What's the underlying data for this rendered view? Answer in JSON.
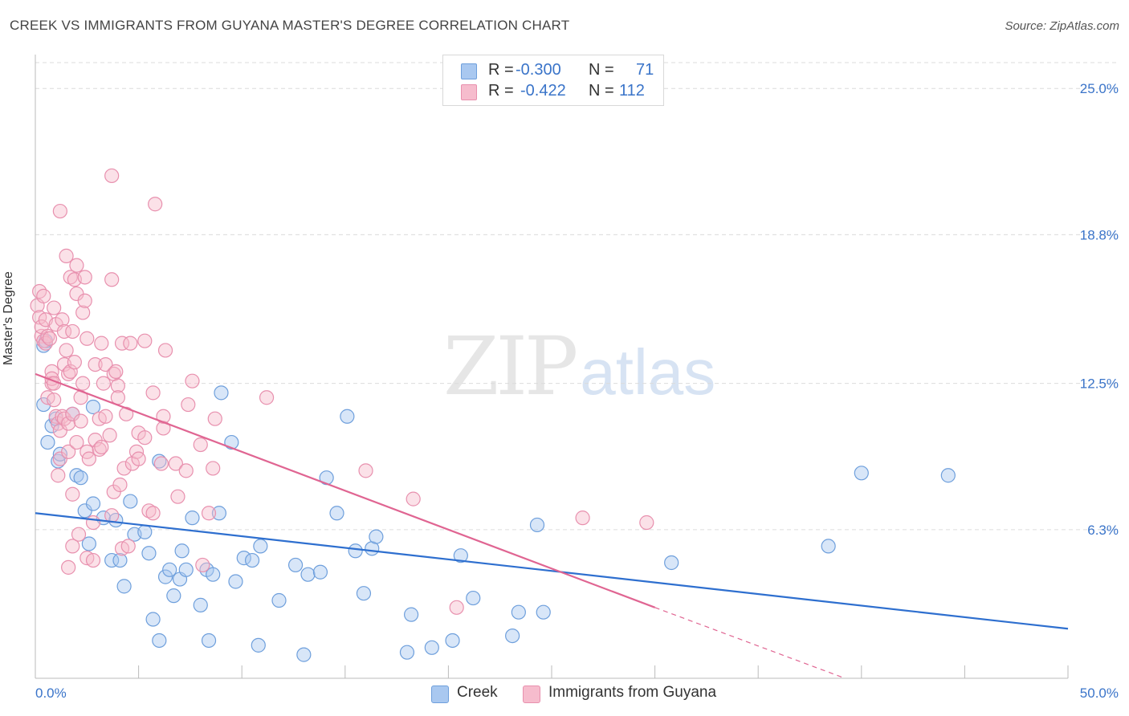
{
  "title": "CREEK VS IMMIGRANTS FROM GUYANA MASTER'S DEGREE CORRELATION CHART",
  "source": "Source: ZipAtlas.com",
  "watermark": {
    "zip": "ZIP",
    "atlas": "atlas"
  },
  "legend_stats": [
    {
      "r_label": "R =",
      "r_value": "-0.300",
      "n_label": "N =",
      "n_value": "71",
      "color": "#a9c8f0",
      "border": "#6e9fdc"
    },
    {
      "r_label": "R =",
      "r_value": "-0.422",
      "n_label": "N =",
      "n_value": "112",
      "color": "#f6bccd",
      "border": "#e890ae"
    }
  ],
  "bottom_legend": [
    {
      "label": "Creek",
      "color": "#a9c8f0",
      "border": "#6e9fdc"
    },
    {
      "label": "Immigrants from Guyana",
      "color": "#f6bccd",
      "border": "#e890ae"
    }
  ],
  "chart_data": {
    "type": "scatter",
    "xlabel": "",
    "ylabel": "Master's Degree",
    "xlim": [
      0,
      50
    ],
    "ylim": [
      0,
      26.3
    ],
    "x_tick_labels": [
      "0.0%",
      "50.0%"
    ],
    "y_ticks": [
      6.3,
      12.5,
      18.8,
      25.0
    ],
    "y_tick_labels": [
      "6.3%",
      "12.5%",
      "18.8%",
      "25.0%"
    ],
    "grid": true,
    "series": [
      {
        "name": "Creek",
        "color": "#6e9fdc",
        "fill": "#a9c8f0",
        "line_color": "#2e6fcf",
        "trend": {
          "x0": 0,
          "y0": 7.0,
          "x1": 50,
          "y1": 2.1
        },
        "points": [
          [
            0.4,
            14.1
          ],
          [
            0.5,
            14.3
          ],
          [
            0.4,
            11.6
          ],
          [
            0.6,
            10.0
          ],
          [
            0.8,
            10.7
          ],
          [
            1.0,
            11.0
          ],
          [
            1.1,
            9.2
          ],
          [
            1.2,
            9.5
          ],
          [
            1.8,
            11.2
          ],
          [
            2.0,
            8.6
          ],
          [
            2.2,
            8.5
          ],
          [
            2.4,
            7.1
          ],
          [
            2.6,
            5.7
          ],
          [
            2.8,
            7.4
          ],
          [
            2.8,
            11.5
          ],
          [
            3.3,
            6.8
          ],
          [
            3.7,
            5.0
          ],
          [
            3.9,
            6.7
          ],
          [
            4.1,
            5.0
          ],
          [
            4.3,
            3.9
          ],
          [
            4.6,
            7.5
          ],
          [
            4.8,
            6.1
          ],
          [
            5.3,
            6.2
          ],
          [
            5.5,
            5.3
          ],
          [
            5.7,
            2.5
          ],
          [
            6.0,
            1.6
          ],
          [
            6.0,
            9.2
          ],
          [
            6.3,
            4.3
          ],
          [
            6.5,
            4.6
          ],
          [
            6.7,
            3.5
          ],
          [
            7.0,
            4.2
          ],
          [
            7.1,
            5.4
          ],
          [
            7.3,
            4.6
          ],
          [
            7.6,
            6.8
          ],
          [
            8.0,
            3.1
          ],
          [
            8.3,
            4.6
          ],
          [
            8.4,
            1.6
          ],
          [
            8.6,
            4.4
          ],
          [
            8.9,
            7.0
          ],
          [
            9.0,
            12.1
          ],
          [
            9.5,
            10.0
          ],
          [
            9.7,
            4.1
          ],
          [
            10.1,
            5.1
          ],
          [
            10.5,
            5.0
          ],
          [
            10.8,
            1.4
          ],
          [
            10.9,
            5.6
          ],
          [
            11.8,
            3.3
          ],
          [
            12.6,
            4.8
          ],
          [
            13.0,
            1.0
          ],
          [
            13.2,
            4.4
          ],
          [
            13.8,
            4.5
          ],
          [
            14.1,
            8.5
          ],
          [
            14.6,
            7.0
          ],
          [
            15.1,
            11.1
          ],
          [
            15.5,
            5.4
          ],
          [
            15.9,
            3.6
          ],
          [
            16.3,
            5.5
          ],
          [
            16.5,
            6.0
          ],
          [
            18.0,
            1.1
          ],
          [
            18.2,
            2.7
          ],
          [
            19.2,
            1.3
          ],
          [
            20.2,
            1.6
          ],
          [
            20.6,
            5.2
          ],
          [
            21.2,
            3.4
          ],
          [
            23.1,
            1.8
          ],
          [
            23.4,
            2.8
          ],
          [
            24.3,
            6.5
          ],
          [
            24.6,
            2.8
          ],
          [
            30.8,
            4.9
          ],
          [
            38.4,
            5.6
          ],
          [
            40.0,
            8.7
          ],
          [
            44.2,
            8.6
          ]
        ]
      },
      {
        "name": "Immigrants from Guyana",
        "color": "#e890ae",
        "fill": "#f6bccd",
        "line_color": "#e06592",
        "trend": {
          "x0": 0,
          "y0": 12.9,
          "x1": 30.0,
          "y1": 3.0
        },
        "trend_dashed": {
          "x0": 30.0,
          "y0": 3.0,
          "x1": 39.2,
          "y1": 0
        },
        "points": [
          [
            0.1,
            15.8
          ],
          [
            0.2,
            16.4
          ],
          [
            0.2,
            15.3
          ],
          [
            0.3,
            14.5
          ],
          [
            0.3,
            14.9
          ],
          [
            0.4,
            16.2
          ],
          [
            0.4,
            14.3
          ],
          [
            0.5,
            15.2
          ],
          [
            0.5,
            14.2
          ],
          [
            0.6,
            14.5
          ],
          [
            0.6,
            11.9
          ],
          [
            0.7,
            14.4
          ],
          [
            0.8,
            13.0
          ],
          [
            0.8,
            12.5
          ],
          [
            0.8,
            12.7
          ],
          [
            0.9,
            12.5
          ],
          [
            0.9,
            15.7
          ],
          [
            0.9,
            11.8
          ],
          [
            1.0,
            15.0
          ],
          [
            1.0,
            11.1
          ],
          [
            1.1,
            10.8
          ],
          [
            1.1,
            8.6
          ],
          [
            1.2,
            10.5
          ],
          [
            1.2,
            9.3
          ],
          [
            1.2,
            19.8
          ],
          [
            1.3,
            11.1
          ],
          [
            1.3,
            15.2
          ],
          [
            1.4,
            14.7
          ],
          [
            1.4,
            13.3
          ],
          [
            1.4,
            11.0
          ],
          [
            1.5,
            17.9
          ],
          [
            1.5,
            13.9
          ],
          [
            1.6,
            4.7
          ],
          [
            1.6,
            10.8
          ],
          [
            1.6,
            9.6
          ],
          [
            1.6,
            12.9
          ],
          [
            1.7,
            17.0
          ],
          [
            1.7,
            13.0
          ],
          [
            1.8,
            5.6
          ],
          [
            1.8,
            7.8
          ],
          [
            1.8,
            11.2
          ],
          [
            1.8,
            14.7
          ],
          [
            1.9,
            13.4
          ],
          [
            1.9,
            16.9
          ],
          [
            2.0,
            16.3
          ],
          [
            2.0,
            17.5
          ],
          [
            2.0,
            10.0
          ],
          [
            2.1,
            6.1
          ],
          [
            2.2,
            11.9
          ],
          [
            2.2,
            10.9
          ],
          [
            2.3,
            12.5
          ],
          [
            2.3,
            15.5
          ],
          [
            2.4,
            17.0
          ],
          [
            2.4,
            16.0
          ],
          [
            2.5,
            14.4
          ],
          [
            2.5,
            9.6
          ],
          [
            2.5,
            5.1
          ],
          [
            2.6,
            9.3
          ],
          [
            2.8,
            5.0
          ],
          [
            2.8,
            6.6
          ],
          [
            2.9,
            13.3
          ],
          [
            2.9,
            10.1
          ],
          [
            3.1,
            11.0
          ],
          [
            3.1,
            9.7
          ],
          [
            3.2,
            9.8
          ],
          [
            3.2,
            14.2
          ],
          [
            3.3,
            12.5
          ],
          [
            3.4,
            11.1
          ],
          [
            3.4,
            13.3
          ],
          [
            3.6,
            10.3
          ],
          [
            3.7,
            21.3
          ],
          [
            3.7,
            6.9
          ],
          [
            3.7,
            16.9
          ],
          [
            3.8,
            7.9
          ],
          [
            3.8,
            12.9
          ],
          [
            3.9,
            13.0
          ],
          [
            4.0,
            12.4
          ],
          [
            4.0,
            11.9
          ],
          [
            4.1,
            8.2
          ],
          [
            4.2,
            5.5
          ],
          [
            4.2,
            14.2
          ],
          [
            4.3,
            8.9
          ],
          [
            4.4,
            11.2
          ],
          [
            4.5,
            5.6
          ],
          [
            4.6,
            14.2
          ],
          [
            4.7,
            9.1
          ],
          [
            4.9,
            9.6
          ],
          [
            5.0,
            10.4
          ],
          [
            5.0,
            9.3
          ],
          [
            5.3,
            14.3
          ],
          [
            5.3,
            10.2
          ],
          [
            5.5,
            7.1
          ],
          [
            5.7,
            7.0
          ],
          [
            5.7,
            12.1
          ],
          [
            5.8,
            20.1
          ],
          [
            6.1,
            9.1
          ],
          [
            6.2,
            10.6
          ],
          [
            6.2,
            11.1
          ],
          [
            6.3,
            13.9
          ],
          [
            6.8,
            9.1
          ],
          [
            6.9,
            7.7
          ],
          [
            7.3,
            8.8
          ],
          [
            7.4,
            11.6
          ],
          [
            7.6,
            12.6
          ],
          [
            8.0,
            9.9
          ],
          [
            8.1,
            4.8
          ],
          [
            8.4,
            7.0
          ],
          [
            8.6,
            8.9
          ],
          [
            8.7,
            11.0
          ],
          [
            11.2,
            11.9
          ],
          [
            16.0,
            8.8
          ],
          [
            18.3,
            7.6
          ],
          [
            20.4,
            3.0
          ],
          [
            26.5,
            6.8
          ],
          [
            29.6,
            6.6
          ]
        ]
      }
    ]
  }
}
